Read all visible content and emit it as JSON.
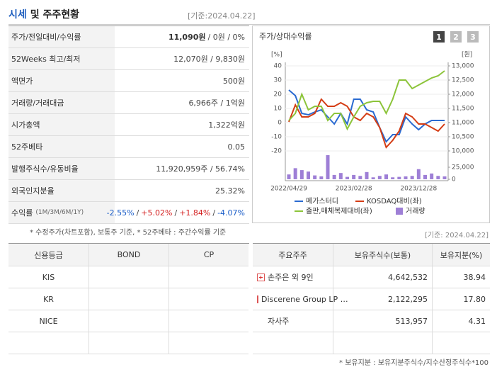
{
  "header": {
    "title": "시세",
    "title_rest": "및 주주현황",
    "date": "[기준:2024.04.22]"
  },
  "quote_table": {
    "rows": [
      {
        "label": "주가/전일대비/수익률",
        "value_bold": "11,090원",
        "value": "/ 0원 / 0%"
      },
      {
        "label": "52Weeks 최고/최저",
        "value": "12,070원 / 9,830원"
      },
      {
        "label": "액면가",
        "value": "500원"
      },
      {
        "label": "거래량/거래대금",
        "value": "6,966주 / 1억원"
      },
      {
        "label": "시가총액",
        "value": "1,322억원"
      },
      {
        "label": "52주베타",
        "value": "0.05"
      },
      {
        "label": "발행주식수/유동비율",
        "value": "11,920,959주 / 56.74%"
      },
      {
        "label": "외국인지분율",
        "value": "25.32%"
      },
      {
        "label": "수익률",
        "label_sub": "(1M/3M/6M/1Y)",
        "separator": "/",
        "returns": [
          {
            "text": "-2.55%",
            "color": "#1a5dc8"
          },
          {
            "text": "+5.02%",
            "color": "#d42020"
          },
          {
            "text": "+1.84%",
            "color": "#d42020"
          },
          {
            "text": "-4.07%",
            "color": "#1a5dc8"
          }
        ]
      }
    ],
    "note": "* 수정주가(차트포함), 보통주 기준, * 52주베타 : 주간수익률 기준"
  },
  "chart_data": {
    "type": "line",
    "title": "주가/상대수익률",
    "buttons": [
      "1",
      "2",
      "3"
    ],
    "y_label": "[%]",
    "y2_label": "[원]",
    "categories": [
      "2022/04/29",
      null,
      null,
      null,
      null,
      null,
      null,
      null,
      null,
      null,
      "2023/02/28",
      null,
      null,
      null,
      null,
      null,
      null,
      null,
      null,
      null,
      "2023/12/28",
      null,
      null,
      null,
      null
    ],
    "ylim": [
      -20,
      40
    ],
    "yticks": [
      -20,
      -10,
      0,
      10,
      20,
      30,
      40
    ],
    "y2lim": [
      10000,
      13000
    ],
    "y2ticks": [
      {
        "value": 10000,
        "label": "10,000"
      },
      {
        "value": 10500,
        "label": "10,500"
      },
      {
        "value": 11000,
        "label": "11,000"
      },
      {
        "value": 11500,
        "label": "11,500"
      },
      {
        "value": 12000,
        "label": "12,000"
      },
      {
        "value": 12500,
        "label": "12,500"
      },
      {
        "value": 13000,
        "label": "13,000"
      }
    ],
    "y3lim": [
      0,
      25000
    ],
    "y3ticks": [
      0,
      {
        "value": 25000,
        "label": "25,000"
      }
    ],
    "grid": true,
    "series": [
      {
        "name": "메가스터디",
        "color": "#2a6ad1",
        "axis": "y2",
        "values": [
          12150,
          11950,
          11325,
          11275,
          11375,
          11450,
          11200,
          10950,
          11325,
          10950,
          11825,
          11825,
          11450,
          11375,
          10825,
          10325,
          10575,
          10575,
          11200,
          10950,
          10750,
          10950,
          11075,
          11075,
          11075
        ]
      },
      {
        "name": "KOSDAQ대비(좌)",
        "color": "#d43c14",
        "values": [
          0.5,
          12.5,
          4,
          4,
          6.5,
          16.5,
          11.5,
          11.5,
          14,
          11.5,
          4,
          1.5,
          6.5,
          4,
          -3.5,
          -17.5,
          -12.5,
          -6,
          6.5,
          4,
          -1,
          -1,
          -3.5,
          -6,
          -1
        ]
      },
      {
        "name": "출판,매체복제대비(좌)",
        "color": "#8cc43a",
        "values": [
          1.5,
          6.5,
          20,
          9,
          11.5,
          11.5,
          1.5,
          6.5,
          6.5,
          -4.5,
          4,
          11.5,
          14,
          15,
          15,
          6.5,
          16.5,
          30,
          30,
          24,
          26.5,
          29,
          31.5,
          33,
          36.5
        ]
      },
      {
        "name": "거래량",
        "color": "#9e7fd6",
        "type": "bar",
        "axis": "y3",
        "values": [
          10000,
          23000,
          19000,
          16000,
          8000,
          6000,
          50000,
          9000,
          13000,
          5000,
          9000,
          7000,
          15000,
          4000,
          7000,
          10000,
          4000,
          5000,
          6000,
          7000,
          21000,
          9000,
          12000,
          7000,
          6000
        ]
      }
    ]
  },
  "chart_date": "[기준: 2024.04.22]",
  "rating_table": {
    "columns": [
      "신용등급",
      "BOND",
      "CP"
    ],
    "rows": [
      "KIS",
      "KR",
      "NICE"
    ]
  },
  "holder_table": {
    "columns": [
      "주요주주",
      "보유주식수(보통)",
      "보유지분(%)"
    ],
    "rows": [
      {
        "name": "손주은 외 9인",
        "shares": "4,642,532",
        "pct": "38.94",
        "expandable": true
      },
      {
        "name": "Discerene Group LP …",
        "shares": "2,122,295",
        "pct": "17.80",
        "expandable": true
      },
      {
        "name": "자사주",
        "shares": "513,957",
        "pct": "4.31",
        "expandable": false
      }
    ],
    "note": "* 보유지분 : 보유지분주식수/지수산정주식수*100"
  }
}
